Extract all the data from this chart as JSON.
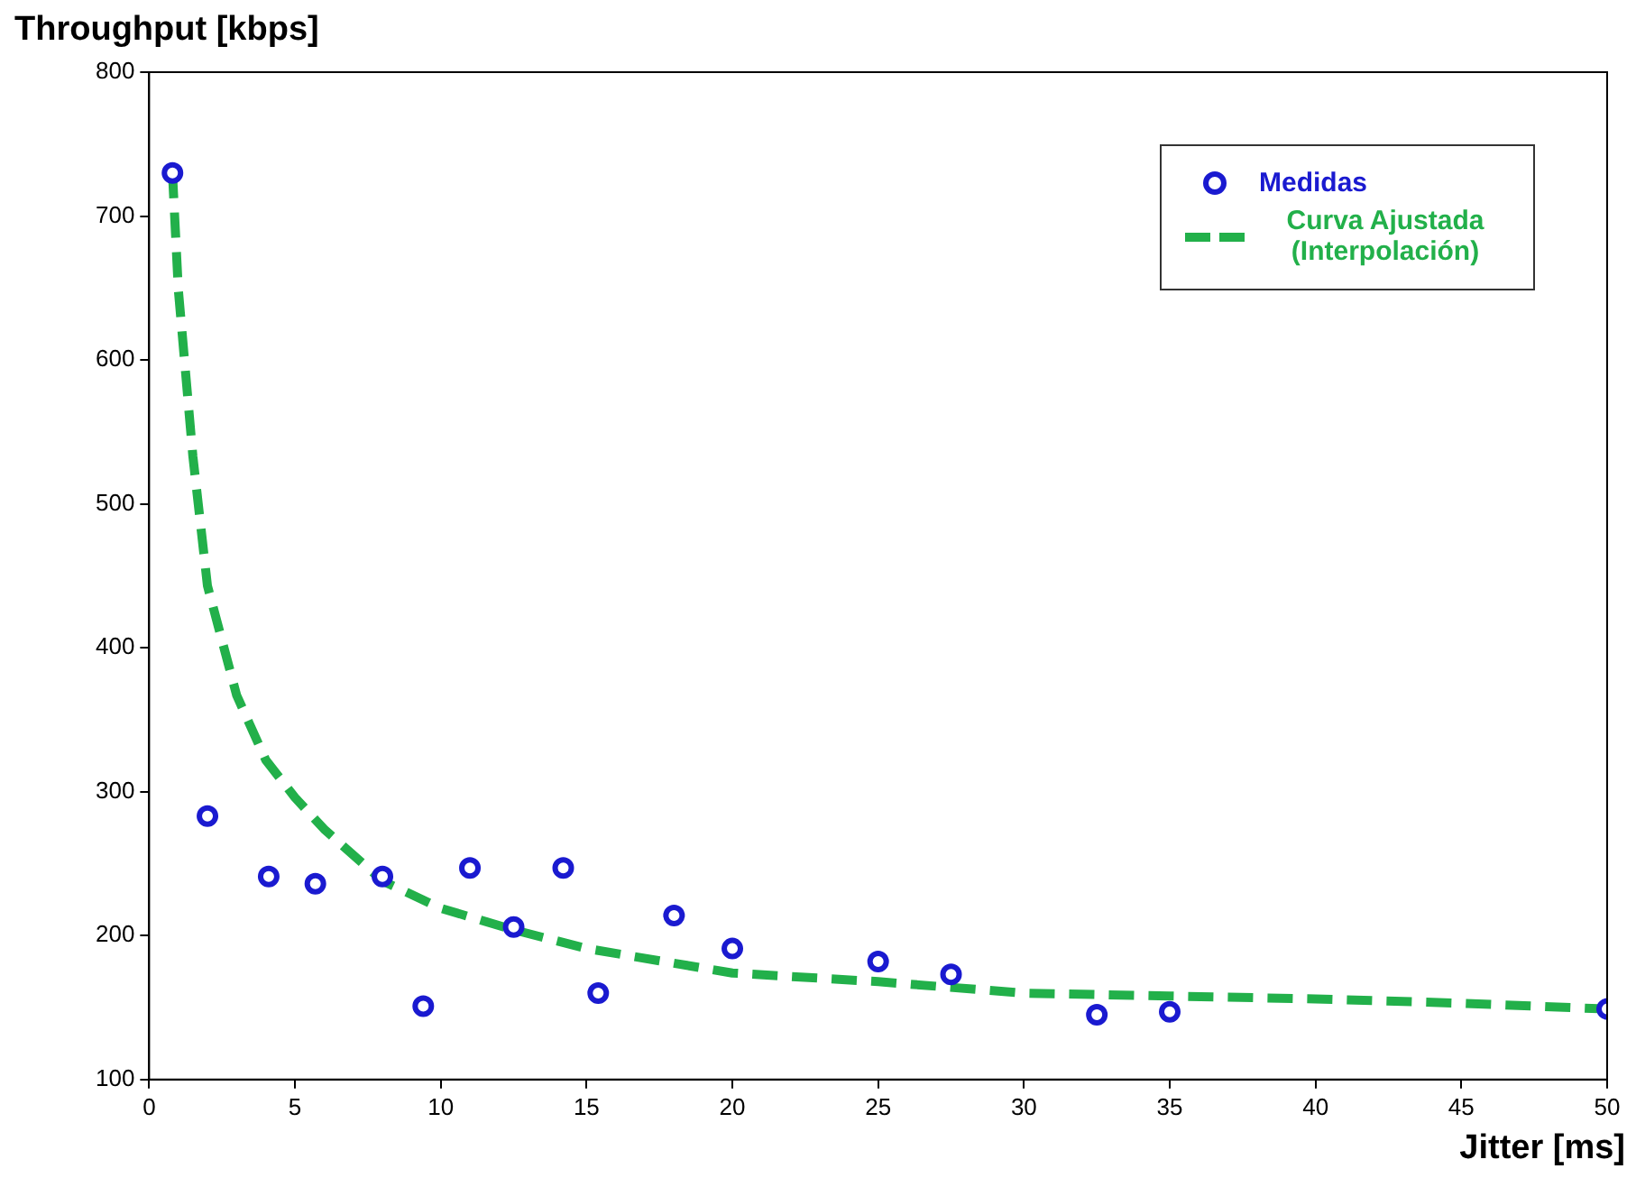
{
  "chart_data": {
    "type": "scatter",
    "xlabel": "Jitter [ms]",
    "ylabel": "Throughput [kbps]",
    "xlim": [
      0,
      50
    ],
    "xticks": [
      0,
      5,
      10,
      15,
      20,
      25,
      30,
      35,
      40,
      45,
      50
    ],
    "ylim": [
      100,
      800
    ],
    "yticks": [
      100,
      200,
      300,
      400,
      500,
      600,
      700,
      800
    ],
    "grid": false,
    "legend": "top right",
    "series": [
      {
        "name": "Medidas",
        "color": "#1a1ad0",
        "marker": "circle",
        "x": [
          0.8,
          2,
          4.1,
          5.7,
          8,
          9.4,
          11,
          12.5,
          14.2,
          15.4,
          18,
          20,
          25,
          27.5,
          32.5,
          35,
          50
        ],
        "values": [
          730,
          283,
          241,
          236,
          241,
          151,
          247,
          206,
          247,
          160,
          214,
          191,
          182,
          173,
          145,
          147,
          149
        ]
      },
      {
        "name": "Curva Ajustada (Interpolación)",
        "type": "line",
        "color": "#22b04a",
        "marker": "none",
        "line_style": "dashed",
        "x": [
          0.8,
          1,
          1.5,
          2,
          3,
          4,
          5,
          6,
          8,
          10,
          12.5,
          15,
          20,
          25,
          30,
          35,
          40,
          45,
          50
        ],
        "values": [
          730,
          649,
          533,
          443,
          367,
          322,
          296,
          274,
          238,
          219,
          204,
          191,
          174,
          168,
          160,
          158,
          156,
          153,
          149
        ]
      }
    ]
  }
}
